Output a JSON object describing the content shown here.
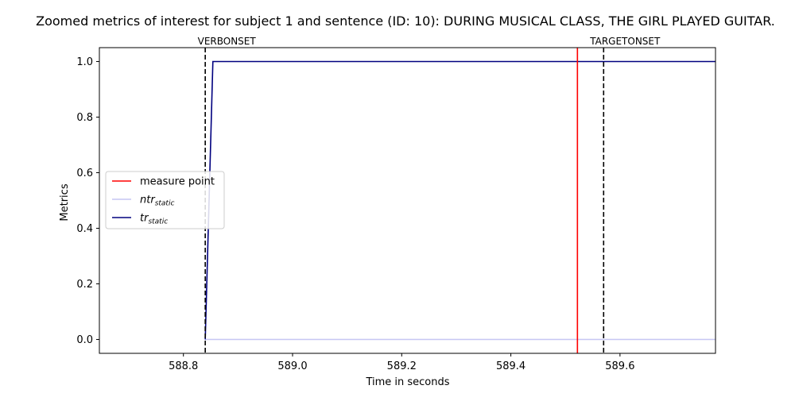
{
  "chart_data": {
    "type": "line",
    "title": "Zoomed metrics of interest for subject 1 and sentence (ID: 10): DURING MUSICAL CLASS, THE GIRL PLAYED GUITAR.",
    "xlabel": "Time in seconds",
    "ylabel": "Metrics",
    "xlim": [
      588.646,
      589.775
    ],
    "ylim": [
      -0.05,
      1.05
    ],
    "x_ticks": [
      588.8,
      589.0,
      589.2,
      589.4,
      589.6
    ],
    "x_tick_labels": [
      "588.8",
      "589.0",
      "589.2",
      "589.4",
      "589.6"
    ],
    "y_ticks": [
      0.0,
      0.2,
      0.4,
      0.6,
      0.8,
      1.0
    ],
    "y_tick_labels": [
      "0.0",
      "0.2",
      "0.4",
      "0.6",
      "0.8",
      "1.0"
    ],
    "grid": false,
    "legend_position": "center-left",
    "series": [
      {
        "name": "ntr_static",
        "label_main": "ntr",
        "label_sub": "static",
        "color": "#c6c6f4",
        "x": [
          588.84,
          589.775
        ],
        "y": [
          0.0,
          0.0
        ]
      },
      {
        "name": "tr_static",
        "label_main": "tr",
        "label_sub": "static",
        "color": "#00007f",
        "x": [
          588.84,
          588.854,
          589.775
        ],
        "y": [
          0.0,
          1.0,
          1.0
        ]
      }
    ],
    "vlines": [
      {
        "name": "measure point",
        "x": 589.522,
        "color": "#ff0000",
        "style": "solid",
        "in_legend": true
      },
      {
        "name": "VERBONSET",
        "x": 588.84,
        "color": "#000000",
        "style": "dashed",
        "in_legend": false,
        "top_label": "VERBONSET"
      },
      {
        "name": "TARGETONSET",
        "x": 589.57,
        "color": "#000000",
        "style": "dashed",
        "in_legend": false,
        "top_label": "TARGETONSET"
      }
    ],
    "legend": [
      {
        "label": "measure point",
        "color": "#ff0000"
      },
      {
        "label_main": "ntr",
        "label_sub": "static",
        "color": "#c6c6f4"
      },
      {
        "label_main": "tr",
        "label_sub": "static",
        "color": "#00007f"
      }
    ]
  }
}
